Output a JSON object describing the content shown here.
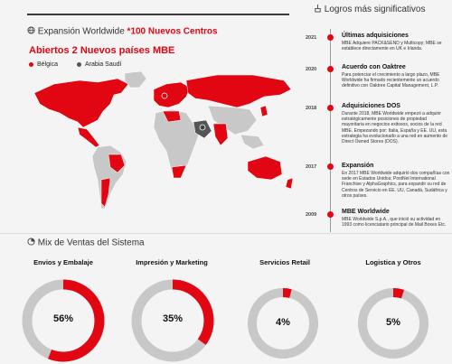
{
  "expansion": {
    "title_prefix": "Expansión Worldwide",
    "title_highlight": "*100 Nuevos Centros",
    "subtitle": "Abiertos 2 Nuevos países MBE",
    "legend": [
      {
        "label": "Bélgica",
        "color": "#e20613"
      },
      {
        "label": "Arabia Saudí",
        "color": "#555555"
      }
    ]
  },
  "achievements": {
    "title": "Logros más significativos",
    "items": [
      {
        "year": "2021",
        "title": "Últimas adquisiciones",
        "text": "MBE Adquiere PACK&SEND y Multicopy; MBE se establece directamente en UK e Irlanda."
      },
      {
        "year": "2020",
        "title": "Acuerdo con Oaktree",
        "text": "Para potenciar el crecimiento a largo plazo, MBE Worldwide ha firmado recientemente un acuerdo definitivo con Oaktree Capital Management, L.P."
      },
      {
        "year": "2018",
        "title": "Adquisiciones DOS",
        "text": "Durante 2018, MBE Worldwide empezó a adquirir estratégicamente posiciones de propiedad mayoritaria en negocios exitosos, socios de la red MBE. Empezando por: Italia, España y EE. UU, esta estrategia ha evolucionado a una red en aumento de Direct Owned Stores (DOS)."
      },
      {
        "year": "2017",
        "title": "Expansión",
        "text": "En 2017 MBE Worldwide adquirió dos compañías con sede en Estados Unidos; PostNet International Franchise y AlphaGraphics, para expandir su red de Centros de Servicio en EE. UU, Canadá, Sudáfrica y otros países."
      },
      {
        "year": "2009",
        "title": "MBE Worldwide",
        "text": "MBE Worldwide S.p.A., que inició su actividad en 1993 como licenciatario principal de Mail Boxes Etc."
      }
    ]
  },
  "sales_mix": {
    "title": "Mix de Ventas del Sistema",
    "items": [
      {
        "label": "Envios y Embalaje",
        "value_label": "56%",
        "share": 0.56
      },
      {
        "label": "Impresión y Marketing",
        "value_label": "35%",
        "share": 0.35
      },
      {
        "label": "Servicios Retail",
        "value_label": "4%",
        "share": 0.04
      },
      {
        "label": "Logistica y Otros",
        "value_label": "5%",
        "share": 0.05
      }
    ]
  },
  "colors": {
    "accent": "#e20613",
    "gray": "#c8c8c8",
    "dark": "#3a3a3a"
  },
  "icons": [
    "globe-icon",
    "logo-mark-icon",
    "pie-icon"
  ]
}
